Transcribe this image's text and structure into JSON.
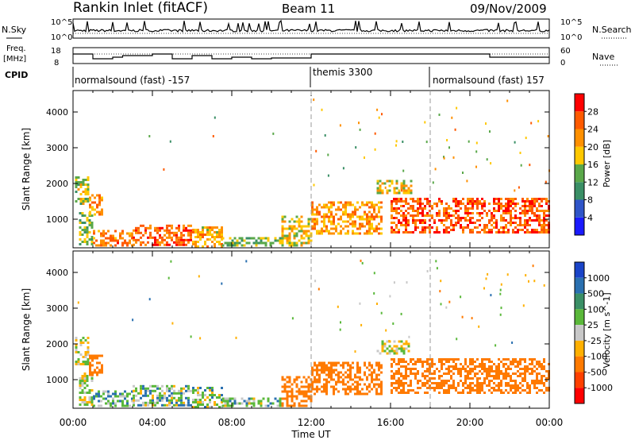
{
  "chart_data": {
    "type": "heatmap",
    "title": "Rankin Inlet (fitACF)",
    "beam": "Beam 11",
    "date": "09/Nov/2009",
    "xlabel": "Time UT",
    "x_ticks": [
      "00:00",
      "04:00",
      "08:00",
      "12:00",
      "16:00",
      "20:00",
      "00:00"
    ],
    "x_range_hours": [
      0,
      24
    ],
    "mode_change_hours": [
      12,
      18
    ],
    "noise_panel": {
      "left_label": "N.Sky",
      "right_label": "N.Search",
      "left_ticks": [
        "10^0",
        "10^5"
      ],
      "right_ticks": [
        "10^0",
        "10^5"
      ]
    },
    "frequency_panel": {
      "left_label": "Freq.",
      "left_unit": "[MHz]",
      "left_ticks": [
        "8",
        "18"
      ],
      "right_label": "Nave",
      "right_ticks": [
        "0",
        "60"
      ]
    },
    "cpid_panel": {
      "label": "CPID",
      "segments": [
        "normalsound (fast) -157",
        "themis 3300",
        "normalsound (fast) 157"
      ]
    },
    "panels": [
      {
        "name": "power",
        "ylabel": "Slant Range [km]",
        "y_ticks": [
          1000,
          2000,
          3000,
          4000
        ],
        "ylim": [
          200,
          4600
        ],
        "colorbar": {
          "label": "Power [dB]",
          "ticks": [
            4,
            8,
            12,
            16,
            20,
            24,
            28
          ],
          "range": [
            0,
            32
          ],
          "colors": [
            "#1a1aff",
            "#2f55c8",
            "#3a8f66",
            "#5aa84a",
            "#ffc800",
            "#ff9000",
            "#ff5a00",
            "#ff0000"
          ]
        }
      },
      {
        "name": "velocity",
        "ylabel": "Slant Range [km]",
        "y_ticks": [
          1000,
          2000,
          3000,
          4000
        ],
        "ylim": [
          200,
          4600
        ],
        "colorbar": {
          "label": "Velocity [m s^-1]",
          "ticks": [
            "1000",
            "500",
            "100",
            "25",
            "-25",
            "-100",
            "-500",
            "-1000"
          ],
          "colors": [
            "#1a44c8",
            "#2a70b0",
            "#3a8f66",
            "#5ab83a",
            "#c8c8c8",
            "#ffb000",
            "#ff7a00",
            "#ff4000",
            "#ff0000"
          ]
        }
      }
    ],
    "regions": [
      {
        "t0": 0.1,
        "t1": 0.8,
        "r0": 1400,
        "r1": 2200,
        "p": 16,
        "v": 0
      },
      {
        "t0": 0.3,
        "t1": 1.0,
        "r0": 300,
        "r1": 1200,
        "p": 14,
        "v": 0
      },
      {
        "t0": 0.8,
        "t1": 1.5,
        "r0": 1100,
        "r1": 1700,
        "p": 22,
        "v": -300
      },
      {
        "t0": 1.0,
        "t1": 3.0,
        "r0": 250,
        "r1": 700,
        "p": 24,
        "v": 80
      },
      {
        "t0": 3.0,
        "t1": 6.0,
        "r0": 250,
        "r1": 850,
        "p": 26,
        "v": 60
      },
      {
        "t0": 6.0,
        "t1": 7.5,
        "r0": 250,
        "r1": 800,
        "p": 20,
        "v": 40
      },
      {
        "t0": 7.5,
        "t1": 10.5,
        "r0": 250,
        "r1": 500,
        "p": 14,
        "v": 50
      },
      {
        "t0": 10.5,
        "t1": 12.0,
        "r0": 250,
        "r1": 1100,
        "p": 18,
        "v": -200
      },
      {
        "t0": 12.0,
        "t1": 15.5,
        "r0": 600,
        "r1": 1500,
        "p": 22,
        "v": -250
      },
      {
        "t0": 15.3,
        "t1": 17.0,
        "r0": 1700,
        "r1": 2100,
        "p": 18,
        "v": 0
      },
      {
        "t0": 16.0,
        "t1": 24.0,
        "r0": 600,
        "r1": 1600,
        "p": 26,
        "v": -400
      }
    ]
  }
}
